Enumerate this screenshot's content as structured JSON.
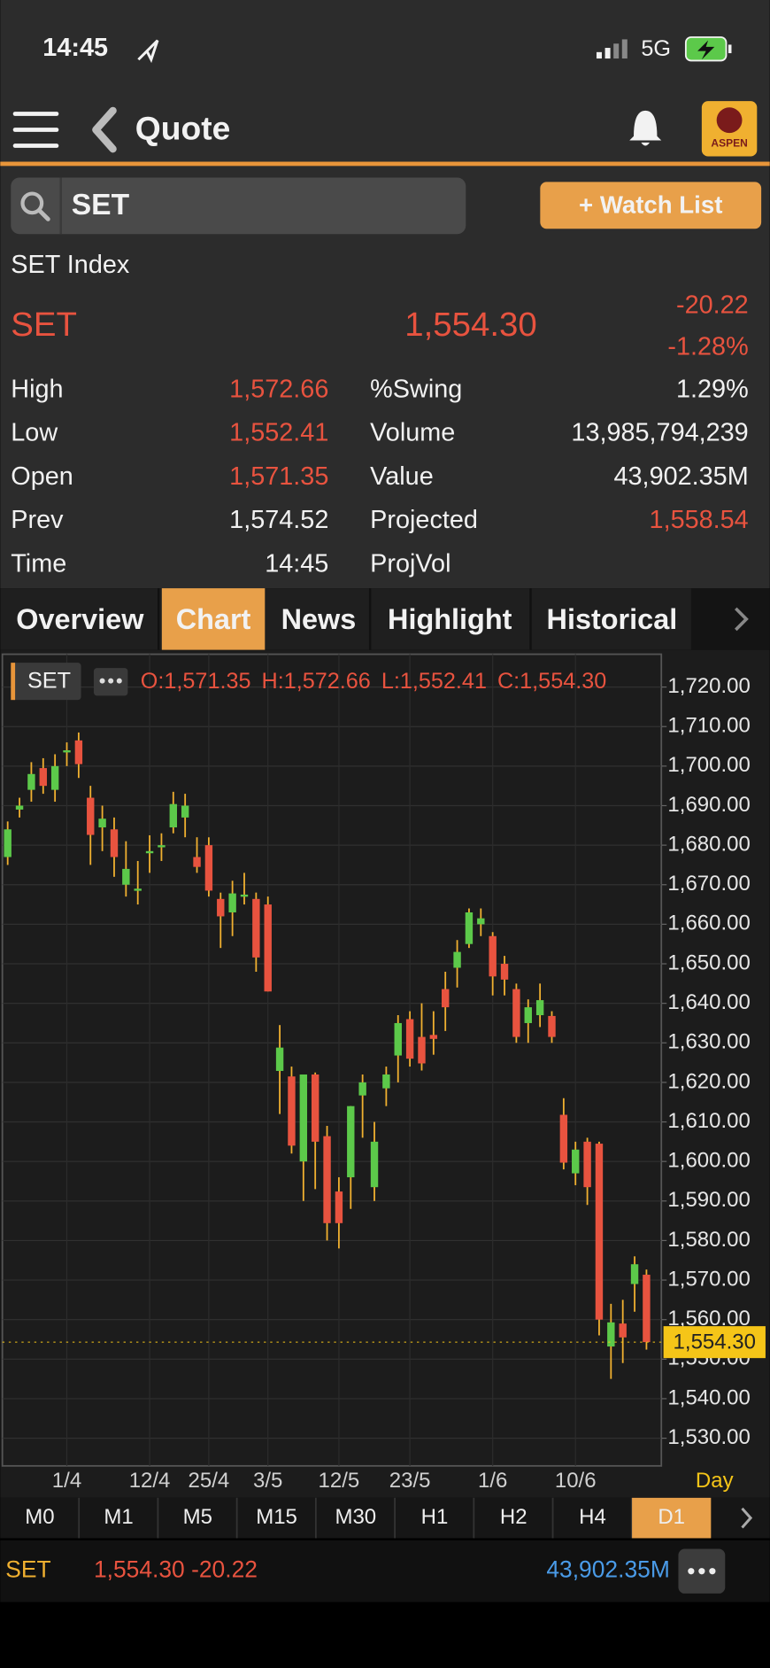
{
  "status": {
    "time": "14:45",
    "network": "5G"
  },
  "nav": {
    "title": "Quote",
    "logo": "ASPEN"
  },
  "search": {
    "symbol": "SET",
    "watch_button": "+ Watch List"
  },
  "quote": {
    "name": "SET Index",
    "symbol": "SET",
    "price": "1,554.30",
    "change": "-20.22",
    "change_pct": "-1.28%",
    "left": [
      {
        "label": "High",
        "value": "1,572.66",
        "color": "#e8533f"
      },
      {
        "label": "Low",
        "value": "1,552.41",
        "color": "#e8533f"
      },
      {
        "label": "Open",
        "value": "1,571.35",
        "color": "#e8533f"
      },
      {
        "label": "Prev",
        "value": "1,574.52",
        "color": "#f2f2f2"
      },
      {
        "label": "Time",
        "value": "14:45",
        "color": "#f2f2f2"
      }
    ],
    "right": [
      {
        "label": "%Swing",
        "value": "1.29%",
        "color": "#f2f2f2"
      },
      {
        "label": "Volume",
        "value": "13,985,794,239",
        "color": "#f2f2f2"
      },
      {
        "label": "Value",
        "value": "43,902.35M",
        "color": "#f2f2f2"
      },
      {
        "label": "Projected",
        "value": "1,558.54",
        "color": "#e8533f"
      },
      {
        "label": "ProjVol"
      }
    ]
  },
  "tabs": {
    "items": [
      "Overview",
      "Chart",
      "News",
      "Highlight",
      "Historical"
    ],
    "active": 1
  },
  "chart_data": {
    "type": "candlestick",
    "symbol": "SET",
    "ohlc_legend": [
      "O:1,571.35",
      "H:1,572.66",
      "L:1,552.41",
      "C:1,554.30"
    ],
    "period": "Day",
    "categories": [
      null,
      null,
      null,
      null,
      null,
      "1/4",
      null,
      null,
      null,
      null,
      null,
      null,
      "12/4",
      null,
      null,
      null,
      null,
      "25/4",
      null,
      null,
      null,
      null,
      "3/5",
      null,
      null,
      null,
      null,
      null,
      "12/5",
      null,
      null,
      null,
      null,
      null,
      "23/5",
      null,
      null,
      null,
      null,
      null,
      null,
      "1/6",
      null,
      null,
      null,
      null,
      null,
      null,
      "10/6",
      null,
      null,
      null,
      null,
      null,
      null
    ],
    "series": [
      {
        "name": "SET",
        "up_color": "#5cc94a",
        "down_color": "#e8533f",
        "open": [
          1677,
          1689,
          1694,
          1699.5,
          1694,
          1703.5,
          1706.5,
          1692,
          1684.5,
          1684,
          1670,
          1668.5,
          1678,
          1679.7,
          1684.5,
          1687,
          1677,
          1680,
          1666.4,
          1663,
          1667,
          1666.4,
          1665,
          1622.9,
          1621.5,
          1600,
          1622,
          1606.4,
          1592.4,
          1596,
          1616.7,
          1593.5,
          1618.5,
          1626.8,
          1636,
          1631.5,
          1632,
          1643.6,
          1649,
          1655,
          1660,
          1657,
          1650,
          1643.6,
          1635,
          1637,
          1636.8,
          1611.8,
          1597,
          1605,
          1604.5,
          1553.2,
          1559,
          1569,
          1571.35
        ],
        "high": [
          1686,
          1692,
          1701,
          1702,
          1703,
          1706,
          1708.5,
          1695,
          1690,
          1687,
          1681,
          1676,
          1682.5,
          1683,
          1693.5,
          1693,
          1682,
          1682,
          1668,
          1671,
          1673,
          1668,
          1667,
          1634.5,
          1624,
          1622,
          1622.5,
          1609,
          1596,
          1614,
          1622,
          1610,
          1624,
          1637,
          1638,
          1640,
          1638,
          1648,
          1656,
          1664,
          1664,
          1658,
          1652,
          1645,
          1641,
          1645,
          1638,
          1616,
          1605,
          1606,
          1605,
          1564,
          1565,
          1576,
          1572.66
        ],
        "low": [
          1675,
          1687,
          1691,
          1693,
          1691,
          1700,
          1697,
          1675,
          1678.5,
          1672,
          1667,
          1665,
          1673,
          1676,
          1683,
          1682,
          1673,
          1667,
          1654,
          1657,
          1665,
          1648,
          1643,
          1612,
          1602,
          1590,
          1593,
          1580,
          1578,
          1588,
          1606,
          1590,
          1614,
          1620,
          1624,
          1623,
          1627,
          1633,
          1644,
          1654,
          1657,
          1642,
          1642,
          1630,
          1630,
          1634,
          1630,
          1598,
          1594,
          1589,
          1556,
          1545,
          1549,
          1562,
          1552.41
        ],
        "close": [
          1684,
          1690,
          1698,
          1695,
          1700,
          1704,
          1700.5,
          1682.6,
          1686.7,
          1677,
          1674,
          1669,
          1678.5,
          1680,
          1690.4,
          1690,
          1674.5,
          1668.5,
          1662,
          1667.8,
          1667.5,
          1651.6,
          1643,
          1628.8,
          1604,
          1622,
          1605,
          1584.4,
          1584.4,
          1614,
          1620,
          1605,
          1622,
          1635,
          1626,
          1624.8,
          1631,
          1639,
          1653,
          1663,
          1661.5,
          1646.8,
          1646,
          1631.5,
          1639,
          1640.8,
          1631.5,
          1599.7,
          1603,
          1593.5,
          1560,
          1559.3,
          1555.5,
          1574,
          1554.3
        ]
      }
    ],
    "ylim": [
      1523,
      1728.3
    ],
    "yticks": [
      {
        "value": 1530,
        "label": "1,530.00"
      },
      {
        "value": 1540,
        "label": "1,540.00"
      },
      {
        "value": 1550,
        "label": "1,550.00"
      },
      {
        "value": 1560,
        "label": "1,560.00"
      },
      {
        "value": 1570,
        "label": "1,570.00"
      },
      {
        "value": 1580,
        "label": "1,580.00"
      },
      {
        "value": 1590,
        "label": "1,590.00"
      },
      {
        "value": 1600,
        "label": "1,600.00"
      },
      {
        "value": 1610,
        "label": "1,610.00"
      },
      {
        "value": 1620,
        "label": "1,620.00"
      },
      {
        "value": 1630,
        "label": "1,630.00"
      },
      {
        "value": 1640,
        "label": "1,640.00"
      },
      {
        "value": 1650,
        "label": "1,650.00"
      },
      {
        "value": 1660,
        "label": "1,660.00"
      },
      {
        "value": 1670,
        "label": "1,670.00"
      },
      {
        "value": 1680,
        "label": "1,680.00"
      },
      {
        "value": 1690,
        "label": "1,690.00"
      },
      {
        "value": 1700,
        "label": "1,700.00"
      },
      {
        "value": 1710,
        "label": "1,710.00"
      },
      {
        "value": 1720,
        "label": "1,720.00"
      }
    ],
    "last_price": {
      "value": 1554.3,
      "label": "1,554.30"
    },
    "grid": true
  },
  "timeframes": {
    "items": [
      "M0",
      "M1",
      "M5",
      "M15",
      "M30",
      "H1",
      "H2",
      "H4",
      "D1"
    ],
    "active": 8
  },
  "footer": {
    "symbol": "SET",
    "price_change": "1,554.30 -20.22",
    "value": "43,902.35M"
  }
}
